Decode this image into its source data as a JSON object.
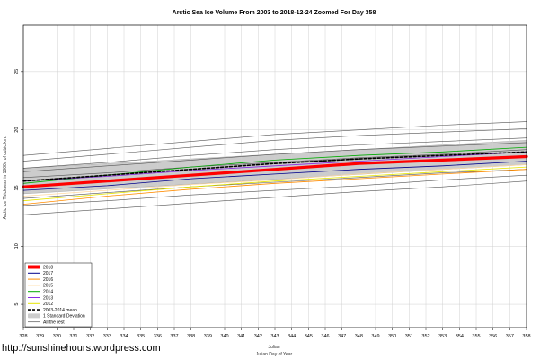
{
  "watermark": "http://sunshinehours.wordpress.com",
  "chart_data": {
    "type": "line",
    "title": "Arctic Sea Ice Volume From 2003 to 2018-12-24 Zoomed For Day 358",
    "xlabel": "Julian",
    "xlabel2": "Julian Day of Year",
    "ylabel": "Arctic Ice Thickness in 1000s of cubic km.",
    "xlim": [
      328,
      358
    ],
    "ylim": [
      3,
      29
    ],
    "x_ticks": [
      328,
      329,
      330,
      331,
      332,
      333,
      334,
      335,
      336,
      337,
      338,
      339,
      340,
      341,
      342,
      343,
      344,
      345,
      346,
      347,
      348,
      349,
      350,
      351,
      352,
      353,
      354,
      355,
      356,
      357,
      358
    ],
    "y_ticks": [
      5,
      10,
      15,
      20,
      25
    ],
    "grid": true,
    "legend_position": "bottom-left",
    "band": {
      "name": "1 Standard Deviation",
      "color": "#cccccc",
      "x": [
        328,
        358
      ],
      "lower": [
        14.5,
        17.0
      ],
      "upper": [
        16.7,
        19.1
      ]
    },
    "series": [
      {
        "name": "2018",
        "color": "#ff0000",
        "width": 3.2,
        "dash": "",
        "x": [
          328,
          333,
          338,
          343,
          348,
          353,
          358
        ],
        "y": [
          15.1,
          15.6,
          16.1,
          16.6,
          17.1,
          17.4,
          17.7
        ]
      },
      {
        "name": "2017",
        "color": "#00008b",
        "width": 0.8,
        "dash": "",
        "x": [
          328,
          333,
          338,
          343,
          348,
          353,
          358
        ],
        "y": [
          14.8,
          15.2,
          15.8,
          16.2,
          16.6,
          16.9,
          17.3
        ]
      },
      {
        "name": "2016",
        "color": "#ff8c00",
        "width": 0.8,
        "dash": "",
        "x": [
          328,
          333,
          338,
          343,
          348,
          353,
          358
        ],
        "y": [
          13.6,
          14.3,
          14.9,
          15.4,
          15.8,
          16.2,
          16.6
        ]
      },
      {
        "name": "2015",
        "color": "#ffd9a0",
        "width": 0.8,
        "dash": "",
        "x": [
          328,
          333,
          338,
          343,
          348,
          353,
          358
        ],
        "y": [
          14.3,
          14.8,
          15.3,
          15.7,
          16.2,
          16.6,
          17.0
        ]
      },
      {
        "name": "2014",
        "color": "#00aa00",
        "width": 0.8,
        "dash": "",
        "x": [
          328,
          333,
          338,
          343,
          348,
          353,
          358
        ],
        "y": [
          15.4,
          16.1,
          16.8,
          17.4,
          17.8,
          18.1,
          18.5
        ]
      },
      {
        "name": "2013",
        "color": "#8a2be2",
        "width": 0.8,
        "dash": "",
        "x": [
          328,
          333,
          338,
          343,
          348,
          353,
          358
        ],
        "y": [
          15.6,
          16.0,
          16.5,
          16.9,
          17.3,
          17.7,
          18.1
        ]
      },
      {
        "name": "2012",
        "color": "#e6e600",
        "width": 0.8,
        "dash": "",
        "x": [
          328,
          333,
          338,
          343,
          348,
          353,
          358
        ],
        "y": [
          13.9,
          14.5,
          15.1,
          15.6,
          16.0,
          16.4,
          16.8
        ]
      },
      {
        "name": "2003-2014 mean",
        "color": "#000000",
        "width": 1.6,
        "dash": "3,2",
        "x": [
          328,
          333,
          338,
          343,
          348,
          353,
          358
        ],
        "y": [
          15.6,
          16.1,
          16.6,
          17.1,
          17.5,
          17.8,
          18.1
        ]
      },
      {
        "name": "All the rest",
        "color": "#555555",
        "width": 0.6,
        "dash": "",
        "x": [
          328,
          333,
          338,
          343,
          348,
          353,
          358
        ],
        "y": [
          17.8,
          18.4,
          19.0,
          19.6,
          20.0,
          20.4,
          20.7
        ]
      },
      {
        "name": "",
        "color": "#555555",
        "width": 0.6,
        "dash": "",
        "x": [
          328,
          333,
          338,
          343,
          348,
          353,
          358
        ],
        "y": [
          17.3,
          17.9,
          18.5,
          19.1,
          19.5,
          19.8,
          20.1
        ]
      },
      {
        "name": "",
        "color": "#555555",
        "width": 0.6,
        "dash": "",
        "x": [
          328,
          333,
          338,
          343,
          348,
          353,
          358
        ],
        "y": [
          16.7,
          17.2,
          17.8,
          18.3,
          18.7,
          19.0,
          19.3
        ]
      },
      {
        "name": "",
        "color": "#555555",
        "width": 0.6,
        "dash": "",
        "x": [
          328,
          333,
          338,
          343,
          348,
          353,
          358
        ],
        "y": [
          16.4,
          16.9,
          17.4,
          17.9,
          18.3,
          18.6,
          18.9
        ]
      },
      {
        "name": "",
        "color": "#555555",
        "width": 0.6,
        "dash": "",
        "x": [
          328,
          333,
          338,
          343,
          348,
          353,
          358
        ],
        "y": [
          15.9,
          16.3,
          16.8,
          17.2,
          17.6,
          17.9,
          18.3
        ]
      },
      {
        "name": "",
        "color": "#555555",
        "width": 0.6,
        "dash": "",
        "x": [
          328,
          333,
          338,
          343,
          348,
          353,
          358
        ],
        "y": [
          14.1,
          14.6,
          15.1,
          15.5,
          15.9,
          16.3,
          16.6
        ]
      },
      {
        "name": "",
        "color": "#555555",
        "width": 0.6,
        "dash": "",
        "x": [
          328,
          333,
          338,
          343,
          348,
          353,
          358
        ],
        "y": [
          13.5,
          13.9,
          14.4,
          14.8,
          15.2,
          15.7,
          16.1
        ]
      },
      {
        "name": "",
        "color": "#555555",
        "width": 0.6,
        "dash": "",
        "x": [
          328,
          333,
          338,
          343,
          348,
          353,
          358
        ],
        "y": [
          12.7,
          13.2,
          13.7,
          14.2,
          14.7,
          15.1,
          15.6
        ]
      }
    ],
    "legend": [
      {
        "label": "2018",
        "color": "#ff0000",
        "kind": "line",
        "width": 4,
        "dash": ""
      },
      {
        "label": "2017",
        "color": "#00008b",
        "kind": "line",
        "width": 1,
        "dash": ""
      },
      {
        "label": "2016",
        "color": "#ff8c00",
        "kind": "line",
        "width": 1,
        "dash": ""
      },
      {
        "label": "2015",
        "color": "#ffd9a0",
        "kind": "line",
        "width": 1,
        "dash": ""
      },
      {
        "label": "2014",
        "color": "#00aa00",
        "kind": "line",
        "width": 1,
        "dash": ""
      },
      {
        "label": "2013",
        "color": "#8a2be2",
        "kind": "line",
        "width": 1,
        "dash": ""
      },
      {
        "label": "2012",
        "color": "#e6e600",
        "kind": "line",
        "width": 1,
        "dash": ""
      },
      {
        "label": "2003-2014 mean",
        "color": "#000000",
        "kind": "line",
        "width": 1.6,
        "dash": "3,2"
      },
      {
        "label": "1 Standard Deviation",
        "color": "#cccccc",
        "kind": "box",
        "width": 0,
        "dash": ""
      },
      {
        "label": "All the rest",
        "color": "#555555",
        "kind": "line",
        "width": 0.7,
        "dash": ""
      }
    ]
  }
}
